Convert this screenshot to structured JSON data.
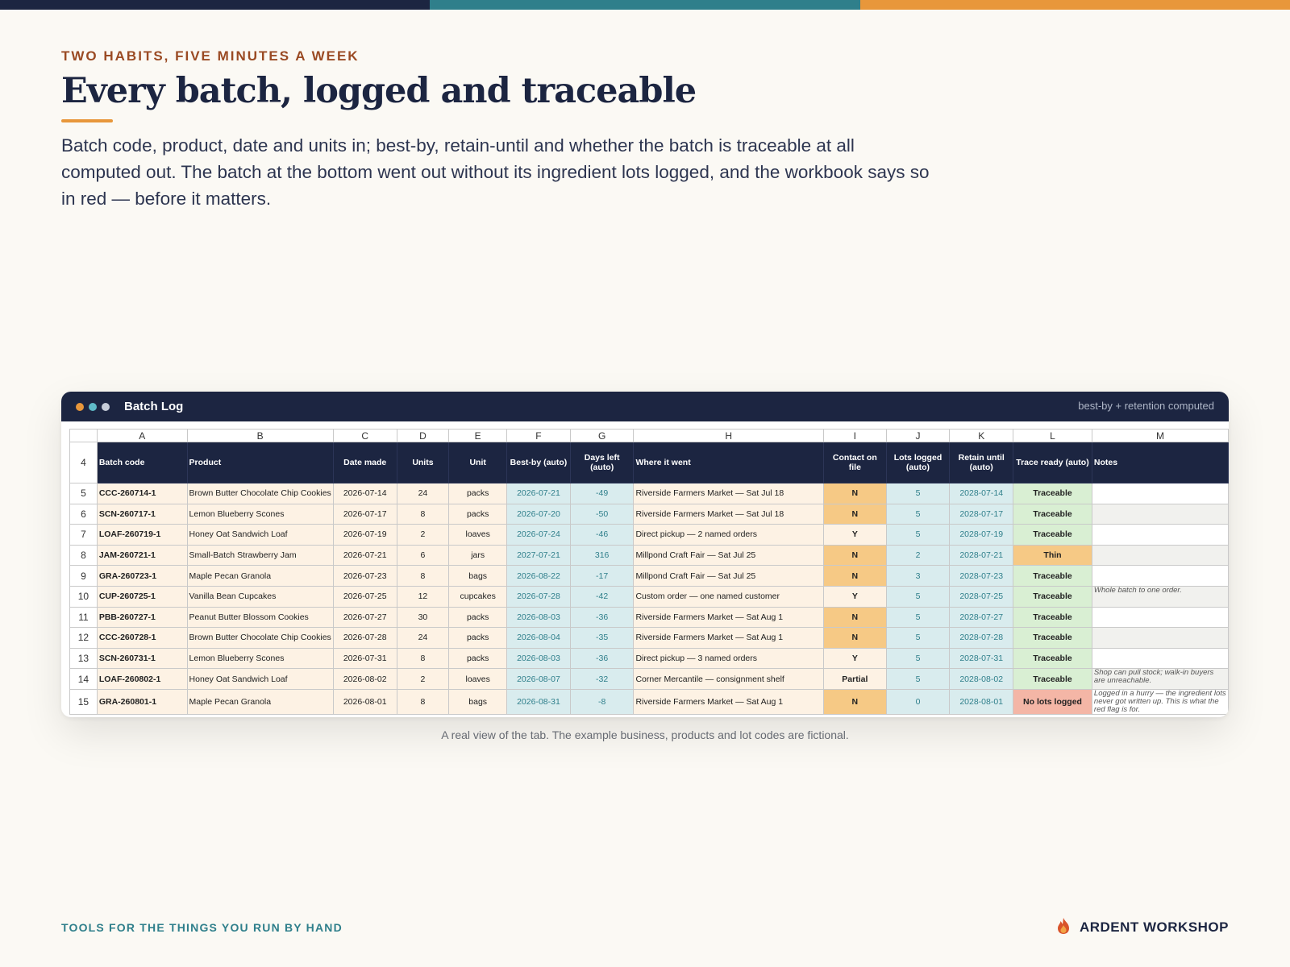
{
  "colors": {
    "navy": "#1c2541",
    "teal": "#2f7f8b",
    "orange": "#e8973b",
    "rust": "#9a4a23"
  },
  "hero": {
    "eyebrow": "TWO HABITS, FIVE MINUTES A WEEK",
    "title": "Every batch, logged and traceable",
    "lede": "Batch code, product, date and units in; best-by, retain-until and whether the batch is traceable at all computed out. The batch at the bottom went out without its ingredient lots logged, and the workbook says so in red — before it matters."
  },
  "window": {
    "title": "Batch Log",
    "note": "best-by + retention computed",
    "dots": [
      "orange",
      "teal",
      "grey"
    ]
  },
  "sheet": {
    "column_letters": [
      "A",
      "B",
      "C",
      "D",
      "E",
      "F",
      "G",
      "H",
      "I",
      "J",
      "K",
      "L",
      "M"
    ],
    "header_row_number": "4",
    "headers": [
      "Batch code",
      "Product",
      "Date made",
      "Units",
      "Unit",
      "Best-by (auto)",
      "Days left (auto)",
      "Where it went",
      "Contact on file",
      "Lots logged (auto)",
      "Retain until (auto)",
      "Trace ready (auto)",
      "Notes"
    ],
    "rows": [
      {
        "n": "5",
        "code": "CCC-260714-1",
        "product": "Brown Butter Chocolate Chip Cookies",
        "made": "2026-07-14",
        "units": "24",
        "unit": "packs",
        "bestby": "2026-07-21",
        "days": "-49",
        "where": "Riverside Farmers Market — Sat Jul 18",
        "contact": "N",
        "lots": "5",
        "retain": "2028-07-14",
        "trace": "Traceable",
        "notes": ""
      },
      {
        "n": "6",
        "code": "SCN-260717-1",
        "product": "Lemon Blueberry Scones",
        "made": "2026-07-17",
        "units": "8",
        "unit": "packs",
        "bestby": "2026-07-20",
        "days": "-50",
        "where": "Riverside Farmers Market — Sat Jul 18",
        "contact": "N",
        "lots": "5",
        "retain": "2028-07-17",
        "trace": "Traceable",
        "notes": ""
      },
      {
        "n": "7",
        "code": "LOAF-260719-1",
        "product": "Honey Oat Sandwich Loaf",
        "made": "2026-07-19",
        "units": "2",
        "unit": "loaves",
        "bestby": "2026-07-24",
        "days": "-46",
        "where": "Direct pickup — 2 named orders",
        "contact": "Y",
        "lots": "5",
        "retain": "2028-07-19",
        "trace": "Traceable",
        "notes": ""
      },
      {
        "n": "8",
        "code": "JAM-260721-1",
        "product": "Small-Batch Strawberry Jam",
        "made": "2026-07-21",
        "units": "6",
        "unit": "jars",
        "bestby": "2027-07-21",
        "days": "316",
        "where": "Millpond Craft Fair — Sat Jul 25",
        "contact": "N",
        "lots": "2",
        "retain": "2028-07-21",
        "trace": "Thin",
        "notes": ""
      },
      {
        "n": "9",
        "code": "GRA-260723-1",
        "product": "Maple Pecan Granola",
        "made": "2026-07-23",
        "units": "8",
        "unit": "bags",
        "bestby": "2026-08-22",
        "days": "-17",
        "where": "Millpond Craft Fair — Sat Jul 25",
        "contact": "N",
        "lots": "3",
        "retain": "2028-07-23",
        "trace": "Traceable",
        "notes": ""
      },
      {
        "n": "10",
        "code": "CUP-260725-1",
        "product": "Vanilla Bean Cupcakes",
        "made": "2026-07-25",
        "units": "12",
        "unit": "cupcakes",
        "bestby": "2026-07-28",
        "days": "-42",
        "where": "Custom order — one named customer",
        "contact": "Y",
        "lots": "5",
        "retain": "2028-07-25",
        "trace": "Traceable",
        "notes": "Whole batch to one order."
      },
      {
        "n": "11",
        "code": "PBB-260727-1",
        "product": "Peanut Butter Blossom Cookies",
        "made": "2026-07-27",
        "units": "30",
        "unit": "packs",
        "bestby": "2026-08-03",
        "days": "-36",
        "where": "Riverside Farmers Market — Sat Aug 1",
        "contact": "N",
        "lots": "5",
        "retain": "2028-07-27",
        "trace": "Traceable",
        "notes": ""
      },
      {
        "n": "12",
        "code": "CCC-260728-1",
        "product": "Brown Butter Chocolate Chip Cookies",
        "made": "2026-07-28",
        "units": "24",
        "unit": "packs",
        "bestby": "2026-08-04",
        "days": "-35",
        "where": "Riverside Farmers Market — Sat Aug 1",
        "contact": "N",
        "lots": "5",
        "retain": "2028-07-28",
        "trace": "Traceable",
        "notes": ""
      },
      {
        "n": "13",
        "code": "SCN-260731-1",
        "product": "Lemon Blueberry Scones",
        "made": "2026-07-31",
        "units": "8",
        "unit": "packs",
        "bestby": "2026-08-03",
        "days": "-36",
        "where": "Direct pickup — 3 named orders",
        "contact": "Y",
        "lots": "5",
        "retain": "2028-07-31",
        "trace": "Traceable",
        "notes": ""
      },
      {
        "n": "14",
        "code": "LOAF-260802-1",
        "product": "Honey Oat Sandwich Loaf",
        "made": "2026-08-02",
        "units": "2",
        "unit": "loaves",
        "bestby": "2026-08-07",
        "days": "-32",
        "where": "Corner Mercantile — consignment shelf",
        "contact": "Partial",
        "lots": "5",
        "retain": "2028-08-02",
        "trace": "Traceable",
        "notes": "Shop can pull stock; walk-in buyers are unreachable."
      },
      {
        "n": "15",
        "code": "GRA-260801-1",
        "product": "Maple Pecan Granola",
        "made": "2026-08-01",
        "units": "8",
        "unit": "bags",
        "bestby": "2026-08-31",
        "days": "-8",
        "where": "Riverside Farmers Market — Sat Aug 1",
        "contact": "N",
        "lots": "0",
        "retain": "2028-08-01",
        "trace": "No lots logged",
        "notes": "Logged in a hurry — the ingredient lots never got written up. This is what the red flag is for."
      }
    ]
  },
  "caption": "A real view of the tab. The example business, products and lot codes are fictional.",
  "footer": {
    "tagline": "TOOLS FOR THE THINGS YOU RUN BY HAND",
    "brand": "ARDENT WORKSHOP",
    "brand_icon": "flame-icon"
  }
}
